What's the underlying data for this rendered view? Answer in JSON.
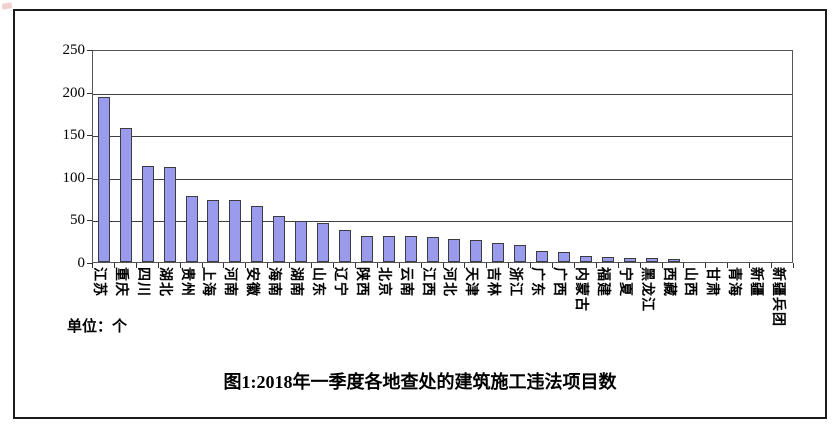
{
  "page": {
    "title": "图1:2018年一季度各地查处的建筑施工违法项目数",
    "unit_label": "单位：个"
  },
  "chart_data": {
    "type": "bar",
    "title": "图1:2018年一季度各地查处的建筑施工违法项目数",
    "unit": "单位：个",
    "categories": [
      "江苏",
      "重庆",
      "四川",
      "湖北",
      "贵州",
      "上海",
      "河南",
      "安徽",
      "海南",
      "湖南",
      "山东",
      "辽宁",
      "陕西",
      "北京",
      "云南",
      "江西",
      "河北",
      "天津",
      "吉林",
      "浙江",
      "广东",
      "广西",
      "内蒙古",
      "福建",
      "宁夏",
      "黑龙江",
      "西藏",
      "山西",
      "甘肃",
      "青海",
      "新疆",
      "新疆兵团"
    ],
    "values": [
      193,
      156,
      111,
      110,
      76,
      72,
      72,
      64,
      53,
      47,
      45,
      36,
      29,
      29,
      29,
      28,
      26,
      25,
      21,
      19,
      12,
      10,
      6,
      5,
      4,
      3,
      2,
      0,
      0,
      0,
      0,
      0
    ],
    "ylim": [
      0,
      250
    ],
    "yticks": [
      0,
      50,
      100,
      150,
      200,
      250
    ],
    "grid": true,
    "legend": "none",
    "bar_color": "#9b9bee",
    "bar_border_color": "#3b3b44",
    "xlabel": "",
    "ylabel": ""
  }
}
